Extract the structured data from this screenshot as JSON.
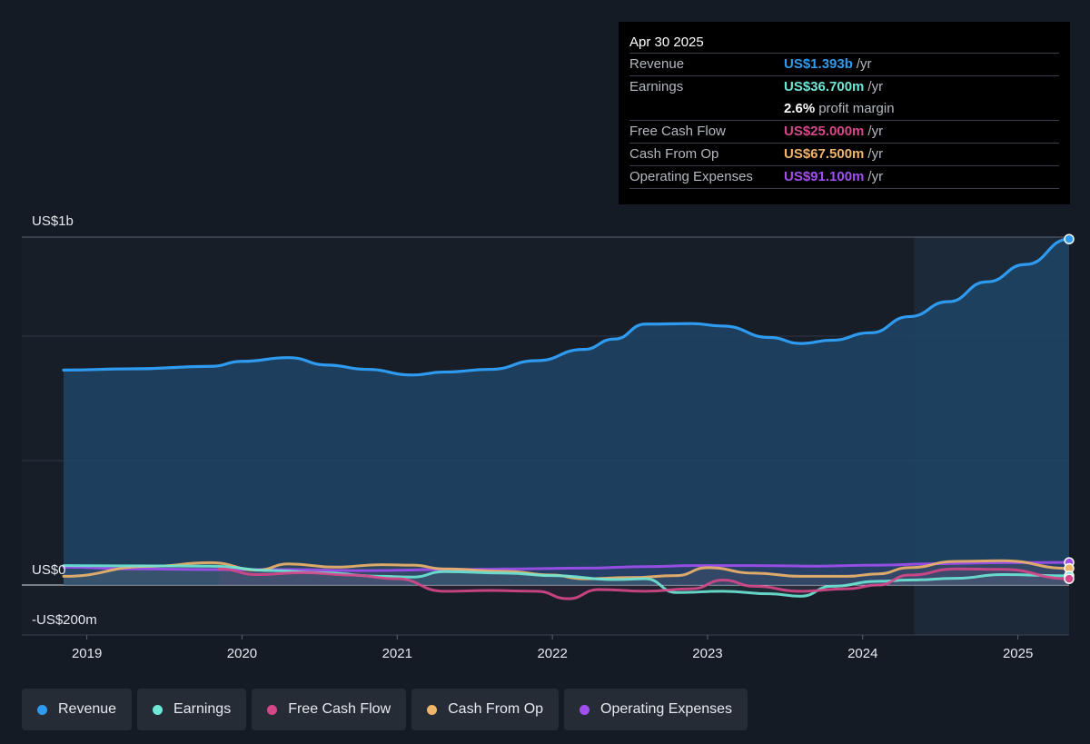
{
  "tooltip": {
    "date": "Apr 30 2025",
    "rows": [
      {
        "label": "Revenue",
        "value": "US$1.393b",
        "unit": "/yr",
        "color": "#2e9bf0"
      },
      {
        "label": "Earnings",
        "value": "US$36.700m",
        "unit": "/yr",
        "color": "#6ee7d6"
      },
      {
        "label": "",
        "value": "2.6%",
        "unit": "profit margin",
        "color": "#ffffff"
      },
      {
        "label": "Free Cash Flow",
        "value": "US$25.000m",
        "unit": "/yr",
        "color": "#d6478a"
      },
      {
        "label": "Cash From Op",
        "value": "US$67.500m",
        "unit": "/yr",
        "color": "#f0b56a"
      },
      {
        "label": "Operating Expenses",
        "value": "US$91.100m",
        "unit": "/yr",
        "color": "#a24ff0"
      }
    ]
  },
  "legend": [
    {
      "label": "Revenue",
      "color": "#2e9bf0"
    },
    {
      "label": "Earnings",
      "color": "#6ee7d6"
    },
    {
      "label": "Free Cash Flow",
      "color": "#d6478a"
    },
    {
      "label": "Cash From Op",
      "color": "#f0b56a"
    },
    {
      "label": "Operating Expenses",
      "color": "#a24ff0"
    }
  ],
  "chart_data": {
    "type": "area",
    "y_tick_labels": [
      {
        "value": 1400,
        "label": "US$1b"
      },
      {
        "value": 0,
        "label": "US$0"
      },
      {
        "value": -200,
        "label": "-US$200m"
      }
    ],
    "ylim": [
      -200,
      1400
    ],
    "xlim": [
      2018.85,
      2025.33
    ],
    "x_ticks": [
      2019,
      2020,
      2021,
      2022,
      2023,
      2024,
      2025
    ],
    "x_tick_labels": [
      "2019",
      "2020",
      "2021",
      "2022",
      "2023",
      "2024",
      "2025"
    ],
    "grid": true,
    "forecast_start": 2024.33,
    "series": [
      {
        "name": "Revenue",
        "color": "#2e9bf0",
        "fill": true,
        "points": [
          [
            2018.85,
            865
          ],
          [
            2019.3,
            870
          ],
          [
            2019.8,
            880
          ],
          [
            2020.0,
            900
          ],
          [
            2020.3,
            915
          ],
          [
            2020.55,
            885
          ],
          [
            2020.8,
            868
          ],
          [
            2021.1,
            845
          ],
          [
            2021.3,
            857
          ],
          [
            2021.6,
            868
          ],
          [
            2021.9,
            903
          ],
          [
            2022.2,
            948
          ],
          [
            2022.4,
            990
          ],
          [
            2022.6,
            1050
          ],
          [
            2022.9,
            1052
          ],
          [
            2023.1,
            1042
          ],
          [
            2023.4,
            996
          ],
          [
            2023.6,
            972
          ],
          [
            2023.8,
            985
          ],
          [
            2024.05,
            1015
          ],
          [
            2024.3,
            1080
          ],
          [
            2024.55,
            1140
          ],
          [
            2024.8,
            1220
          ],
          [
            2025.05,
            1290
          ],
          [
            2025.33,
            1392
          ]
        ]
      },
      {
        "name": "Earnings",
        "color": "#6ee7d6",
        "fill": false,
        "points": [
          [
            2018.85,
            78
          ],
          [
            2019.8,
            76
          ],
          [
            2020.2,
            58
          ],
          [
            2020.5,
            50
          ],
          [
            2020.9,
            35
          ],
          [
            2021.1,
            32
          ],
          [
            2021.3,
            54
          ],
          [
            2021.7,
            48
          ],
          [
            2022.0,
            38
          ],
          [
            2022.4,
            22
          ],
          [
            2022.6,
            25
          ],
          [
            2022.8,
            -30
          ],
          [
            2023.1,
            -25
          ],
          [
            2023.4,
            -35
          ],
          [
            2023.6,
            -45
          ],
          [
            2023.8,
            -5
          ],
          [
            2024.1,
            15
          ],
          [
            2024.3,
            20
          ],
          [
            2024.6,
            27
          ],
          [
            2024.9,
            42
          ],
          [
            2025.33,
            37
          ]
        ]
      },
      {
        "name": "Free Cash Flow",
        "color": "#d6478a",
        "fill": false,
        "points": [
          [
            2019.85,
            65
          ],
          [
            2020.1,
            42
          ],
          [
            2020.4,
            50
          ],
          [
            2020.7,
            40
          ],
          [
            2021.0,
            25
          ],
          [
            2021.3,
            -25
          ],
          [
            2021.6,
            -22
          ],
          [
            2021.9,
            -25
          ],
          [
            2022.1,
            -55
          ],
          [
            2022.3,
            -18
          ],
          [
            2022.6,
            -25
          ],
          [
            2022.9,
            -15
          ],
          [
            2023.1,
            20
          ],
          [
            2023.3,
            -5
          ],
          [
            2023.6,
            -25
          ],
          [
            2023.9,
            -15
          ],
          [
            2024.1,
            0
          ],
          [
            2024.3,
            40
          ],
          [
            2024.6,
            65
          ],
          [
            2024.9,
            63
          ],
          [
            2025.33,
            25
          ]
        ]
      },
      {
        "name": "Cash From Op",
        "color": "#f0b56a",
        "fill": false,
        "points": [
          [
            2018.85,
            35
          ],
          [
            2019.4,
            75
          ],
          [
            2019.8,
            90
          ],
          [
            2020.1,
            60
          ],
          [
            2020.3,
            85
          ],
          [
            2020.6,
            72
          ],
          [
            2020.9,
            82
          ],
          [
            2021.1,
            80
          ],
          [
            2021.3,
            65
          ],
          [
            2021.7,
            55
          ],
          [
            2022.0,
            40
          ],
          [
            2022.2,
            25
          ],
          [
            2022.5,
            30
          ],
          [
            2022.8,
            38
          ],
          [
            2023.0,
            70
          ],
          [
            2023.3,
            48
          ],
          [
            2023.6,
            35
          ],
          [
            2023.9,
            35
          ],
          [
            2024.1,
            45
          ],
          [
            2024.3,
            70
          ],
          [
            2024.6,
            95
          ],
          [
            2024.9,
            98
          ],
          [
            2025.33,
            67
          ]
        ]
      },
      {
        "name": "Operating Expenses",
        "color": "#a24ff0",
        "fill": false,
        "points": [
          [
            2018.85,
            72
          ],
          [
            2019.3,
            65
          ],
          [
            2019.8,
            62
          ],
          [
            2020.3,
            62
          ],
          [
            2020.8,
            58
          ],
          [
            2021.3,
            62
          ],
          [
            2021.8,
            65
          ],
          [
            2022.2,
            68
          ],
          [
            2022.6,
            74
          ],
          [
            2022.9,
            78
          ],
          [
            2023.3,
            78
          ],
          [
            2023.7,
            76
          ],
          [
            2024.1,
            80
          ],
          [
            2024.5,
            86
          ],
          [
            2024.9,
            90
          ],
          [
            2025.33,
            91
          ]
        ]
      }
    ]
  }
}
